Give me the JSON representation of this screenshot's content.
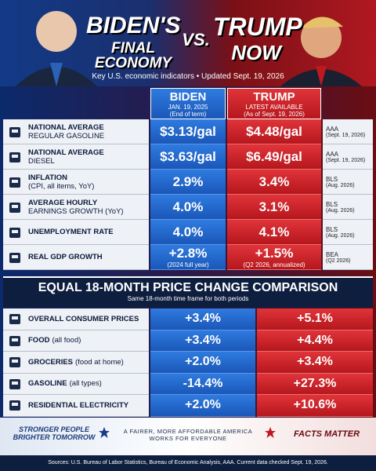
{
  "header": {
    "left_title": [
      "BIDEN'S",
      "FINAL ECONOMY"
    ],
    "vs": "VS.",
    "right_title": [
      "TRUMP",
      "NOW"
    ],
    "subtitle": "Key U.S. economic indicators • Updated Sept. 19, 2026"
  },
  "columns": {
    "biden": [
      "BIDEN",
      "JAN. 19, 2025",
      "(End of term)"
    ],
    "trump": [
      "TRUMP",
      "LATEST AVAILABLE",
      "(As of Sept. 19, 2026)"
    ]
  },
  "table": {
    "rows": [
      {
        "label": [
          "NATIONAL AVERAGE",
          "REGULAR GASOLINE"
        ],
        "biden": [
          "$3.13/gal"
        ],
        "trump": [
          "$4.48/gal"
        ],
        "source": [
          "AAA",
          "(Sept. 19, 2026)"
        ]
      },
      {
        "label": [
          "NATIONAL AVERAGE",
          "DIESEL"
        ],
        "biden": [
          "$3.63/gal"
        ],
        "trump": [
          "$6.49/gal"
        ],
        "source": [
          "AAA",
          "(Sept. 19, 2026)"
        ]
      },
      {
        "label": [
          "INFLATION",
          "(CPI, all items, YoY)"
        ],
        "biden": [
          "2.9%"
        ],
        "trump": [
          "3.4%"
        ],
        "source": [
          "BLS",
          "(Aug. 2026)"
        ]
      },
      {
        "label": [
          "AVERAGE HOURLY",
          "EARNINGS GROWTH (YoY)"
        ],
        "biden": [
          "4.0%"
        ],
        "trump": [
          "3.1%"
        ],
        "source": [
          "BLS",
          "(Aug. 2026)"
        ]
      },
      {
        "label": [
          "UNEMPLOYMENT RATE"
        ],
        "biden": [
          "4.0%"
        ],
        "trump": [
          "4.1%"
        ],
        "source": [
          "BLS",
          "(Aug. 2026)"
        ]
      },
      {
        "label": [
          "REAL GDP GROWTH"
        ],
        "biden": [
          "+2.8%",
          "(2024 full year)"
        ],
        "trump": [
          "+1.5%",
          "(Q2 2026, annualized)"
        ],
        "source": [
          "BEA",
          "(Q2 2026)"
        ]
      }
    ]
  },
  "comparison": {
    "title": "EQUAL 18-MONTH PRICE CHANGE COMPARISON",
    "subtitle": "Same 18-month time frame for both periods",
    "rows": [
      {
        "label": [
          "OVERALL CONSUMER PRICES"
        ],
        "biden": "+3.4%",
        "trump": "+5.1%"
      },
      {
        "label": [
          "FOOD",
          "(all food)"
        ],
        "biden": "+3.4%",
        "trump": "+4.4%"
      },
      {
        "label": [
          "GROCERIES",
          "(food at home)"
        ],
        "biden": "+2.0%",
        "trump": "+3.4%"
      },
      {
        "label": [
          "GASOLINE",
          "(all types)"
        ],
        "biden": "-14.4%",
        "trump": "+27.3%"
      },
      {
        "label": [
          "RESIDENTIAL ELECTRICITY"
        ],
        "biden": "+2.0%",
        "trump": "+10.6%"
      }
    ]
  },
  "footer": {
    "left": [
      "STRONGER PEOPLE",
      "BRIGHTER TOMORROW"
    ],
    "middle": [
      "A FAIRER, MORE AFFORDABLE AMERICA",
      "WORKS FOR EVERYONE"
    ],
    "right": "FACTS MATTER",
    "sources": "Sources: U.S. Bureau of Labor Statistics, Bureau of Economic Analysis, AAA. Current data checked Sept. 19, 2026."
  }
}
